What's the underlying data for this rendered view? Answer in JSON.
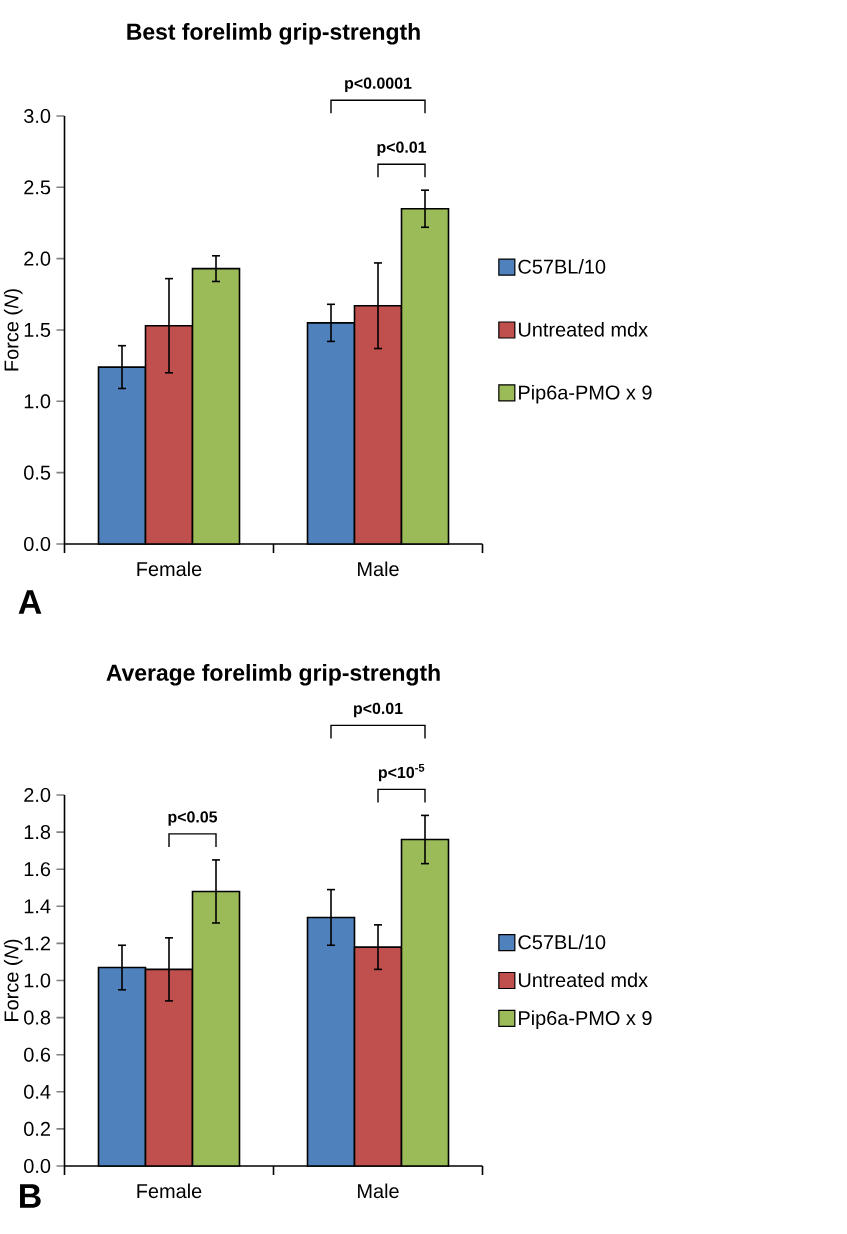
{
  "chart_data": [
    {
      "type": "bar",
      "title": "Best forelimb grip-strength",
      "ylabel": "Force (*N*)",
      "categories": [
        "Female",
        "Male"
      ],
      "series": [
        {
          "name": "C57BL/10",
          "color": "#4f81bd",
          "values": [
            1.24,
            1.55
          ],
          "errors": [
            0.15,
            0.13
          ]
        },
        {
          "name": "Untreated mdx",
          "color": "#c0504d",
          "values": [
            1.53,
            1.67
          ],
          "errors": [
            0.33,
            0.3
          ]
        },
        {
          "name": "Pip6a-PMO x 9",
          "color": "#9bbb59",
          "values": [
            1.93,
            2.35
          ],
          "errors": [
            0.09,
            0.13
          ]
        }
      ],
      "ylim": [
        0,
        3.0
      ],
      "yticks": [
        {
          "value": 0,
          "label": "0.0"
        },
        {
          "value": 0.5,
          "label": "0.5"
        },
        {
          "value": 1.0,
          "label": "1.0"
        },
        {
          "value": 1.5,
          "label": "1.5"
        },
        {
          "value": 2.0,
          "label": "2.0"
        },
        {
          "value": 2.5,
          "label": "2.5"
        },
        {
          "value": 3.0,
          "label": "3.0"
        }
      ],
      "legend": "right",
      "annotations": [
        "p<0.0001",
        "p<0.01",
        "A"
      ]
    },
    {
      "type": "bar",
      "title": "Average forelimb grip-strength",
      "ylabel": "Force (*N*)",
      "categories": [
        "Female",
        "Male"
      ],
      "series": [
        {
          "name": "C57BL/10",
          "color": "#4f81bd",
          "values": [
            1.07,
            1.34
          ],
          "errors": [
            0.12,
            0.15
          ]
        },
        {
          "name": "Untreated mdx",
          "color": "#c0504d",
          "values": [
            1.06,
            1.18
          ],
          "errors": [
            0.17,
            0.12
          ]
        },
        {
          "name": "Pip6a-PMO x 9",
          "color": "#9bbb59",
          "values": [
            1.48,
            1.76
          ],
          "errors": [
            0.17,
            0.13
          ]
        }
      ],
      "ylim": [
        0,
        2.0
      ],
      "yticks": [
        {
          "value": 0,
          "label": "0.0"
        },
        {
          "value": 0.2,
          "label": "0.2"
        },
        {
          "value": 0.4,
          "label": "0.4"
        },
        {
          "value": 0.6,
          "label": "0.6"
        },
        {
          "value": 0.8,
          "label": "0.8"
        },
        {
          "value": 1.0,
          "label": "1.0"
        },
        {
          "value": 1.2,
          "label": "1.2"
        },
        {
          "value": 1.4,
          "label": "1.4"
        },
        {
          "value": 1.6,
          "label": "1.6"
        },
        {
          "value": 1.8,
          "label": "1.8"
        },
        {
          "value": 2.0,
          "label": "2.0"
        }
      ],
      "legend": "right",
      "annotations": [
        "p<0.05",
        "p<0.01",
        "p<10$^{-5}$",
        "B"
      ]
    }
  ]
}
